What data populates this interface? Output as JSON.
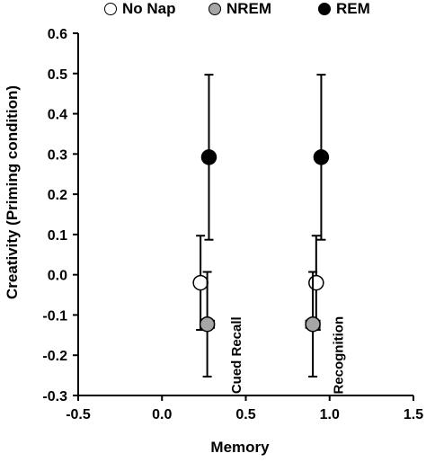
{
  "chart_data": {
    "type": "scatter",
    "xlabel": "Memory",
    "ylabel": "Creativity (Priming condition)",
    "xlim": [
      -0.5,
      1.5
    ],
    "ylim": [
      -0.3,
      0.6
    ],
    "xticks": [
      "-0.5",
      "0.0",
      "0.5",
      "1.0",
      "1.5"
    ],
    "yticks": [
      "-0.3",
      "-0.2",
      "-0.1",
      "0.0",
      "0.1",
      "0.2",
      "0.3",
      "0.4",
      "0.5",
      "0.6"
    ],
    "xtick_values": [
      -0.5,
      0.0,
      0.5,
      1.0,
      1.5
    ],
    "ytick_values": [
      -0.3,
      -0.2,
      -0.1,
      0.0,
      0.1,
      0.2,
      0.3,
      0.4,
      0.5,
      0.6
    ],
    "legend_position": "top",
    "series": [
      {
        "name": "No Nap",
        "color": "#ffffff",
        "points": [
          {
            "x": 0.23,
            "y": -0.02,
            "x_err": 0.01,
            "y_err": 0.117
          },
          {
            "x": 0.92,
            "y": -0.02,
            "x_err": 0.01,
            "y_err": 0.117
          }
        ]
      },
      {
        "name": "NREM",
        "color": "#a6a6a6",
        "points": [
          {
            "x": 0.27,
            "y": -0.123,
            "x_err": 0.04,
            "y_err": 0.13
          },
          {
            "x": 0.9,
            "y": -0.123,
            "x_err": 0.04,
            "y_err": 0.13
          }
        ]
      },
      {
        "name": "REM",
        "color": "#000000",
        "points": [
          {
            "x": 0.28,
            "y": 0.292,
            "x_err": 0.03,
            "y_err": 0.205
          },
          {
            "x": 0.95,
            "y": 0.292,
            "x_err": 0.03,
            "y_err": 0.205
          }
        ]
      }
    ],
    "annotations": [
      {
        "text": "Cued Recall",
        "x": 0.47,
        "y": -0.2
      },
      {
        "text": "Recognition",
        "x": 1.08,
        "y": -0.2
      }
    ]
  }
}
